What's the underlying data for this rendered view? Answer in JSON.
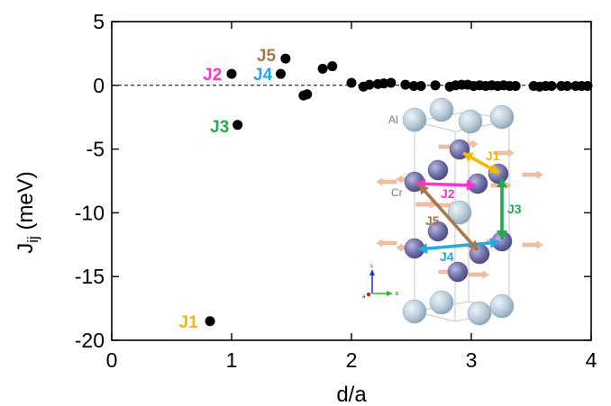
{
  "chart_data": {
    "type": "scatter",
    "xlabel": "d/a",
    "ylabel_main": "J",
    "ylabel_sub": "ij",
    "ylabel_unit": " (meV)",
    "xlim": [
      0,
      4
    ],
    "ylim": [
      -20,
      5
    ],
    "xticks": [
      0,
      1,
      2,
      3,
      4
    ],
    "yticks": [
      5,
      0,
      -5,
      -10,
      -15,
      -20
    ],
    "zero_line": "dashed",
    "points": [
      {
        "x": 0.82,
        "y": -18.5
      },
      {
        "x": 1.0,
        "y": 0.9
      },
      {
        "x": 1.05,
        "y": -3.1
      },
      {
        "x": 1.41,
        "y": 0.9
      },
      {
        "x": 1.45,
        "y": 2.1
      },
      {
        "x": 1.6,
        "y": -0.8
      },
      {
        "x": 1.63,
        "y": -0.7
      },
      {
        "x": 1.76,
        "y": 1.3
      },
      {
        "x": 1.84,
        "y": 1.5
      },
      {
        "x": 2.0,
        "y": 0.2
      },
      {
        "x": 2.1,
        "y": -0.1
      },
      {
        "x": 2.15,
        "y": 0.05
      },
      {
        "x": 2.22,
        "y": 0.1
      },
      {
        "x": 2.27,
        "y": 0.15
      },
      {
        "x": 2.33,
        "y": 0.2
      },
      {
        "x": 2.45,
        "y": 0.05
      },
      {
        "x": 2.52,
        "y": -0.05
      },
      {
        "x": 2.58,
        "y": -0.05
      },
      {
        "x": 2.7,
        "y": 0.0
      },
      {
        "x": 2.82,
        "y": -0.1
      },
      {
        "x": 2.87,
        "y": 0.0
      },
      {
        "x": 2.92,
        "y": 0.05
      },
      {
        "x": 2.97,
        "y": 0.05
      },
      {
        "x": 3.02,
        "y": -0.05
      },
      {
        "x": 3.07,
        "y": 0.0
      },
      {
        "x": 3.12,
        "y": -0.05
      },
      {
        "x": 3.17,
        "y": 0.0
      },
      {
        "x": 3.22,
        "y": -0.05
      },
      {
        "x": 3.27,
        "y": 0.0
      },
      {
        "x": 3.32,
        "y": -0.05
      },
      {
        "x": 3.37,
        "y": -0.05
      },
      {
        "x": 3.52,
        "y": -0.05
      },
      {
        "x": 3.57,
        "y": -0.1
      },
      {
        "x": 3.62,
        "y": -0.05
      },
      {
        "x": 3.67,
        "y": -0.05
      },
      {
        "x": 3.75,
        "y": -0.05
      },
      {
        "x": 3.8,
        "y": -0.05
      },
      {
        "x": 3.87,
        "y": -0.05
      },
      {
        "x": 3.92,
        "y": -0.05
      },
      {
        "x": 3.97,
        "y": -0.05
      }
    ],
    "annotations": [
      {
        "text": "J1",
        "x": 0.64,
        "y": -18.5,
        "color": "#F5B800"
      },
      {
        "text": "J2",
        "x": 0.84,
        "y": 0.9,
        "color": "#FF33CC"
      },
      {
        "text": "J3",
        "x": 0.9,
        "y": -3.2,
        "color": "#22AA4C"
      },
      {
        "text": "J4",
        "x": 1.26,
        "y": 0.9,
        "color": "#22AAE8"
      },
      {
        "text": "J5",
        "x": 1.29,
        "y": 2.4,
        "color": "#A6784B"
      }
    ],
    "inset": {
      "atom_labels": [
        "Al",
        "Cr"
      ],
      "bond_labels": [
        {
          "text": "J1",
          "color": "#F5B800"
        },
        {
          "text": "J2",
          "color": "#FF33CC"
        },
        {
          "text": "J3",
          "color": "#22AA4C"
        },
        {
          "text": "J4",
          "color": "#22AAE8"
        },
        {
          "text": "J5",
          "color": "#A6784B"
        }
      ],
      "axis_labels": [
        "c",
        "b",
        "a"
      ]
    }
  }
}
